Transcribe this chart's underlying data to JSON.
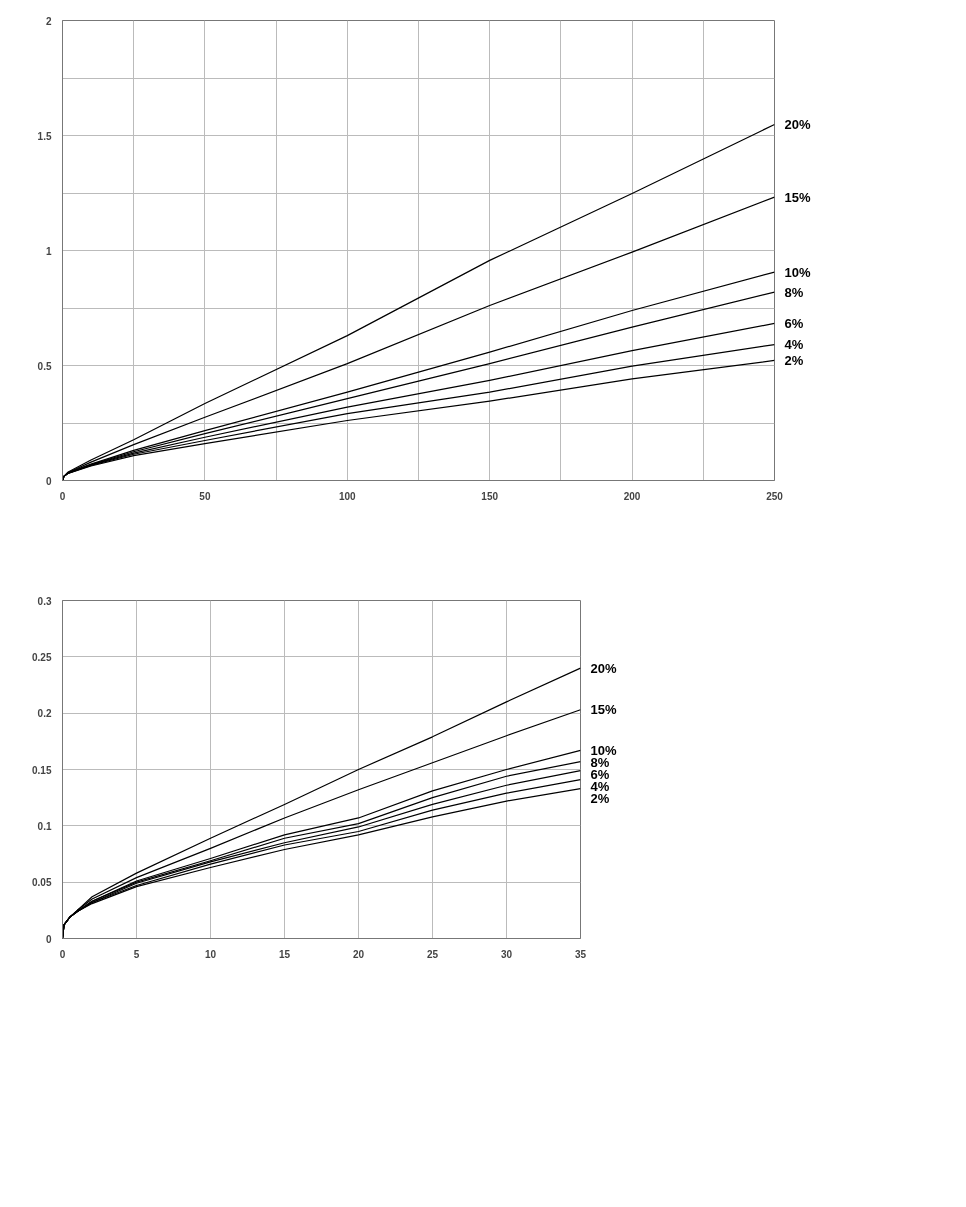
{
  "chart_data": [
    {
      "type": "line",
      "x": [
        0,
        0.5,
        2,
        10,
        25,
        50,
        100,
        150,
        200,
        250
      ],
      "series": [
        {
          "name": "20%",
          "color": "#000000",
          "values": [
            0,
            0.018,
            0.037,
            0.089,
            0.177,
            0.335,
            0.63,
            0.957,
            1.248,
            1.548
          ]
        },
        {
          "name": "15%",
          "color": "#000000",
          "values": [
            0,
            0.018,
            0.035,
            0.08,
            0.156,
            0.275,
            0.508,
            0.761,
            0.993,
            1.232
          ]
        },
        {
          "name": "10%",
          "color": "#000000",
          "values": [
            0,
            0.018,
            0.033,
            0.071,
            0.131,
            0.217,
            0.384,
            0.558,
            0.739,
            0.906
          ]
        },
        {
          "name": "8%",
          "color": "#000000",
          "values": [
            0,
            0.018,
            0.033,
            0.069,
            0.125,
            0.204,
            0.356,
            0.508,
            0.667,
            0.819
          ]
        },
        {
          "name": "6%",
          "color": "#000000",
          "values": [
            0,
            0.018,
            0.032,
            0.068,
            0.119,
            0.188,
            0.319,
            0.435,
            0.565,
            0.683
          ]
        },
        {
          "name": "4%",
          "color": "#000000",
          "values": [
            0,
            0.018,
            0.032,
            0.066,
            0.114,
            0.174,
            0.291,
            0.384,
            0.497,
            0.591
          ]
        },
        {
          "name": "2%",
          "color": "#000000",
          "values": [
            0,
            0.018,
            0.031,
            0.063,
            0.108,
            0.16,
            0.261,
            0.345,
            0.442,
            0.522
          ]
        }
      ],
      "xlim": [
        0,
        250
      ],
      "ylim": [
        0,
        2
      ],
      "xticks": [
        0,
        {
          "value": 25,
          "label": null
        },
        50,
        {
          "value": 75,
          "label": null
        },
        100,
        {
          "value": 125,
          "label": null
        },
        150,
        {
          "value": 175,
          "label": null
        },
        200,
        {
          "value": 225,
          "label": null
        },
        250
      ],
      "yticks": [
        0,
        {
          "value": 0.25,
          "label": null
        },
        0.5,
        {
          "value": 0.75,
          "label": null
        },
        1,
        {
          "value": 1.25,
          "label": null
        },
        1.5,
        {
          "value": 1.75,
          "label": null
        },
        2
      ],
      "grid": true,
      "legend": false,
      "marker": "none",
      "line_style": "solid"
    },
    {
      "type": "line",
      "x": [
        0,
        0.1,
        0.5,
        1,
        2,
        5,
        10,
        15,
        20,
        25,
        30,
        35
      ],
      "series": [
        {
          "name": "20%",
          "color": "#000000",
          "values": [
            0,
            0.012,
            0.019,
            0.025,
            0.037,
            0.058,
            0.089,
            0.119,
            0.15,
            0.179,
            0.21,
            0.24
          ]
        },
        {
          "name": "15%",
          "color": "#000000",
          "values": [
            0,
            0.012,
            0.019,
            0.025,
            0.035,
            0.054,
            0.08,
            0.107,
            0.132,
            0.156,
            0.18,
            0.203
          ]
        },
        {
          "name": "10%",
          "color": "#000000",
          "values": [
            0,
            0.012,
            0.019,
            0.024,
            0.033,
            0.051,
            0.071,
            0.092,
            0.107,
            0.131,
            0.15,
            0.167
          ]
        },
        {
          "name": "8%",
          "color": "#000000",
          "values": [
            0,
            0.012,
            0.019,
            0.024,
            0.033,
            0.05,
            0.069,
            0.089,
            0.102,
            0.125,
            0.144,
            0.157
          ]
        },
        {
          "name": "6%",
          "color": "#000000",
          "values": [
            0,
            0.012,
            0.019,
            0.024,
            0.032,
            0.049,
            0.068,
            0.085,
            0.099,
            0.119,
            0.136,
            0.149
          ]
        },
        {
          "name": "4%",
          "color": "#000000",
          "values": [
            0,
            0.012,
            0.019,
            0.024,
            0.032,
            0.047,
            0.066,
            0.083,
            0.095,
            0.114,
            0.129,
            0.141
          ]
        },
        {
          "name": "2%",
          "color": "#000000",
          "values": [
            0,
            0.012,
            0.019,
            0.024,
            0.031,
            0.046,
            0.063,
            0.079,
            0.092,
            0.108,
            0.122,
            0.133
          ]
        }
      ],
      "xlim": [
        0,
        35
      ],
      "ylim": [
        0,
        0.3
      ],
      "xticks": [
        0,
        5,
        10,
        15,
        20,
        25,
        30,
        35
      ],
      "yticks": [
        0,
        0.05,
        0.1,
        0.15,
        0.2,
        0.25,
        0.3
      ],
      "grid": true,
      "legend": false,
      "marker": "none",
      "line_style": "solid"
    }
  ]
}
